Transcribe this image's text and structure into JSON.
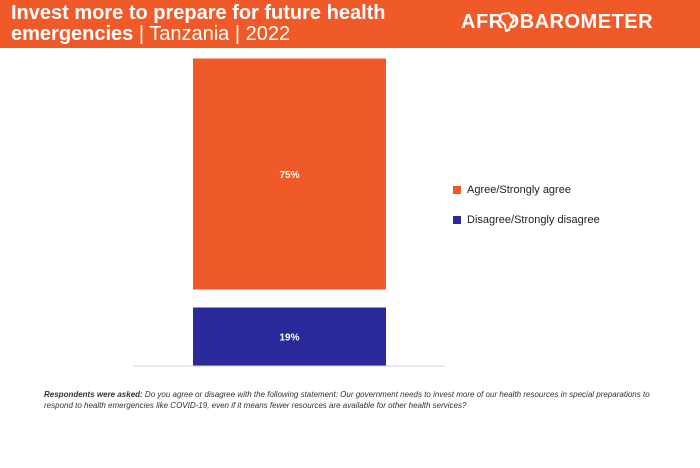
{
  "header": {
    "title_main": "Invest more to prepare for future health emergencies",
    "title_suffix": " | Tanzania | 2022",
    "brand": "AFROBAROMETER"
  },
  "colors": {
    "header_bg": "#f05a28",
    "agree": "#f05a28",
    "disagree": "#2a2a9a"
  },
  "chart_data": {
    "type": "bar",
    "stacked": true,
    "orientation": "vertical",
    "categories": [
      ""
    ],
    "series": [
      {
        "name": "Agree/Strongly agree",
        "values": [
          75
        ],
        "label": "75%",
        "color": "#f05a28"
      },
      {
        "name": "Disagree/Strongly disagree",
        "values": [
          19
        ],
        "label": "19%",
        "color": "#2a2a9a"
      }
    ],
    "ylim": [
      0,
      100
    ],
    "grid": false,
    "legend": "right"
  },
  "legend": {
    "items": [
      {
        "label": "Agree/Strongly agree",
        "color": "#f05a28"
      },
      {
        "label": "Disagree/Strongly disagree",
        "color": "#2a2a9a"
      }
    ]
  },
  "footnote": {
    "lead": "Respondents were asked:",
    "text": " Do you agree or disagree with the following statement: Our government needs to invest more of our health resources in special preparations to respond to health emergencies like COVID-19, even if it means fewer resources are available for other health services?"
  }
}
